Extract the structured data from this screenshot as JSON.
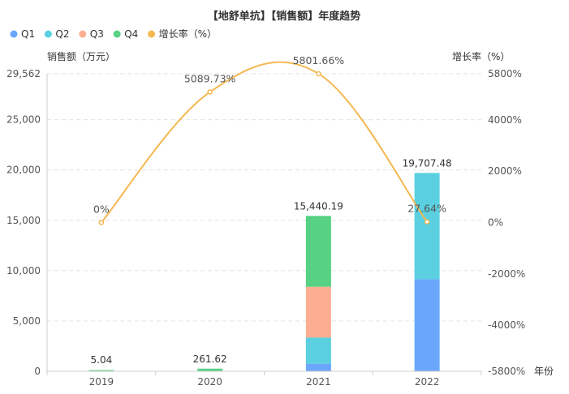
{
  "chart_data": {
    "type": "bar",
    "title": "【地舒单抗】【销售额】年度趋势",
    "stacked": true,
    "legend_position": "top-left",
    "grid": true,
    "xlabel": "年份",
    "ylabel": "销售额（万元）",
    "y2label": "增长率（%）",
    "categories": [
      "2019",
      "2020",
      "2021",
      "2022"
    ],
    "ylim": [
      0,
      29562
    ],
    "y_ticks": [
      0,
      5000,
      10000,
      15000,
      20000,
      25000,
      29562
    ],
    "y_tick_labels": [
      "0",
      "5,000",
      "10,000",
      "15,000",
      "20,000",
      "25,000",
      "29,562"
    ],
    "y2lim": [
      -5800,
      5800
    ],
    "y2_ticks": [
      -5800,
      -4000,
      -2000,
      0,
      2000,
      4000,
      5800
    ],
    "y2_tick_labels": [
      "-5800%",
      "-4000%",
      "-2000%",
      "0%",
      "2000%",
      "4000%",
      "5800%"
    ],
    "series": [
      {
        "name": "Q1",
        "color": "#6ba6fd",
        "values": [
          0,
          0,
          750,
          9150
        ]
      },
      {
        "name": "Q2",
        "color": "#5ad0e0",
        "values": [
          0,
          0,
          2600,
          10557.48
        ]
      },
      {
        "name": "Q3",
        "color": "#fdae92",
        "values": [
          0,
          0,
          5050,
          0
        ]
      },
      {
        "name": "Q4",
        "color": "#57d183",
        "values": [
          5.04,
          261.62,
          7040.19,
          0
        ]
      }
    ],
    "totals": [
      5.04,
      261.62,
      15440.19,
      19707.48
    ],
    "total_labels": [
      "5.04",
      "261.62",
      "15,440.19",
      "19,707.48"
    ],
    "growth_series": {
      "name": "增长率（%）",
      "color": "#f4b851",
      "axis": "right",
      "values": [
        0,
        5089.73,
        5801.66,
        27.64
      ],
      "labels": [
        "0%",
        "5089.73%",
        "5801.66%",
        "27.64%"
      ]
    }
  }
}
